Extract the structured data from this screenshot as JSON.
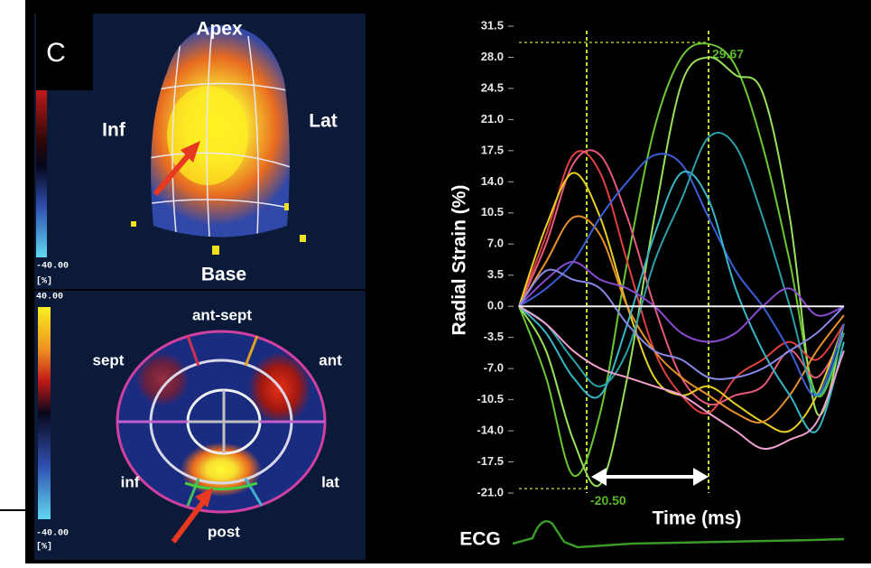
{
  "panel": {
    "label": "C"
  },
  "top_view": {
    "apex": "Apex",
    "inf": "Inf",
    "lat": "Lat",
    "base": "Base",
    "scale_min": "-40.00",
    "unit": "[%]"
  },
  "bullseye": {
    "scale_max": "40.00",
    "scale_min": "-40.00",
    "unit": "[%]",
    "ant_sept": "ant-sept",
    "sept": "sept",
    "ant": "ant",
    "inf": "inf",
    "lat": "lat",
    "post": "post"
  },
  "chart_data": {
    "type": "line",
    "ylabel": "Radial Strain (%)",
    "xlabel": "Time (ms)",
    "ecg_label": "ECG",
    "x": [
      0,
      30,
      60,
      90,
      120,
      150,
      180,
      210,
      240,
      270,
      300,
      330,
      360
    ],
    "xlim": [
      0,
      360
    ],
    "ylim": [
      -21,
      31.5
    ],
    "yticks": [
      31.5,
      {
        "value": 28,
        "label": "28.0"
      },
      24.5,
      {
        "value": 21,
        "label": "21.0"
      },
      17.5,
      {
        "value": 14,
        "label": "14.0"
      },
      10.5,
      {
        "value": 7,
        "label": "7.0"
      },
      3.5,
      {
        "value": 0,
        "label": "0.0"
      },
      -3.5,
      {
        "value": -7,
        "label": "-7.0"
      },
      -10.5,
      {
        "value": -14,
        "label": "-14.0"
      },
      -17.5,
      {
        "value": -21,
        "label": "-21.0"
      }
    ],
    "zero_line": true,
    "markers": [
      {
        "x": 75,
        "y": -20.5,
        "label": "-20.50"
      },
      {
        "x": 210,
        "y": 29.67,
        "label": "29.67"
      }
    ],
    "series": [
      {
        "color": "#6cc832",
        "values": [
          0,
          -8,
          -19,
          -12,
          5,
          20,
          28,
          29.5,
          27,
          18,
          5,
          -10,
          -3
        ]
      },
      {
        "color": "#9ae05a",
        "values": [
          0,
          -5,
          -15,
          -20,
          -8,
          10,
          25,
          28,
          26,
          24,
          10,
          -12,
          -2
        ]
      },
      {
        "color": "#e04040",
        "values": [
          0,
          8,
          17,
          15,
          5,
          -5,
          -10,
          -12,
          -8,
          -6,
          -4,
          -6,
          -2
        ]
      },
      {
        "color": "#e85a7a",
        "values": [
          0,
          7,
          16,
          17,
          10,
          0,
          -8,
          -11,
          -10,
          -9,
          -5,
          -8,
          -3
        ]
      },
      {
        "color": "#e8d020",
        "values": [
          0,
          9,
          15,
          10,
          0,
          -8,
          -10,
          -9,
          -11,
          -13,
          -14,
          -10,
          -2
        ]
      },
      {
        "color": "#e8902a",
        "values": [
          0,
          5,
          10,
          8,
          0,
          -5,
          -8,
          -10,
          -12,
          -13,
          -10,
          -5,
          -1
        ]
      },
      {
        "color": "#3a5fd8",
        "values": [
          0,
          2,
          5,
          10,
          14,
          17,
          16,
          10,
          4,
          0,
          -5,
          -10,
          -2
        ]
      },
      {
        "color": "#36b6c8",
        "values": [
          0,
          -3,
          -8,
          -10,
          -2,
          8,
          15,
          12,
          2,
          -5,
          -10,
          -14,
          -4
        ]
      },
      {
        "color": "#2aa0a8",
        "values": [
          0,
          -2,
          -6,
          -9,
          -5,
          5,
          12,
          19,
          18,
          10,
          0,
          -10,
          -3
        ]
      },
      {
        "color": "#8a4ad0",
        "values": [
          0,
          3,
          5,
          3,
          2,
          0,
          -3,
          -4,
          -3,
          0,
          2,
          -1,
          0
        ]
      },
      {
        "color": "#f0a0d0",
        "values": [
          0,
          -2,
          -5,
          -7,
          -8,
          -9,
          -10,
          -12,
          -14,
          -16,
          -15,
          -13,
          -5
        ]
      },
      {
        "color": "#8888e8",
        "values": [
          0,
          4,
          3,
          2,
          -2,
          -5,
          -6,
          -8,
          -8,
          -7,
          -5,
          -3,
          0
        ]
      }
    ]
  }
}
